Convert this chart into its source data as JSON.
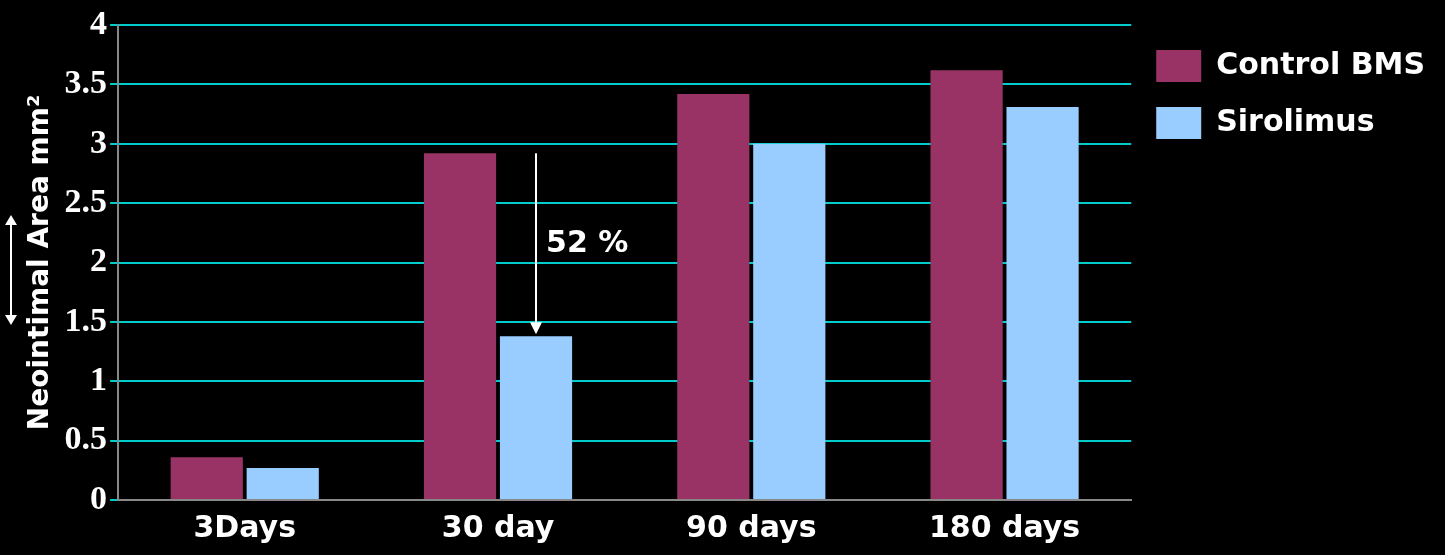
{
  "chart_data": {
    "type": "bar",
    "ylabel": "Neointimal Area mm²",
    "categories": [
      "3Days",
      "30 day",
      "90 days",
      "180 days"
    ],
    "series": [
      {
        "name": "Control BMS",
        "color": "#993366",
        "values": [
          0.36,
          2.92,
          3.42,
          3.62
        ]
      },
      {
        "name": "Sirolimus",
        "color": "#99ccff",
        "values": [
          0.27,
          1.38,
          3.0,
          3.31
        ]
      }
    ],
    "ylim": [
      0,
      4
    ],
    "yticks": [
      0,
      0.5,
      1,
      1.5,
      2,
      2.5,
      3,
      3.5,
      4
    ],
    "grid": "y",
    "legend": "top right",
    "annotations": [
      {
        "text": "52 %",
        "x": "30 day",
        "y": 2.15
      }
    ]
  }
}
